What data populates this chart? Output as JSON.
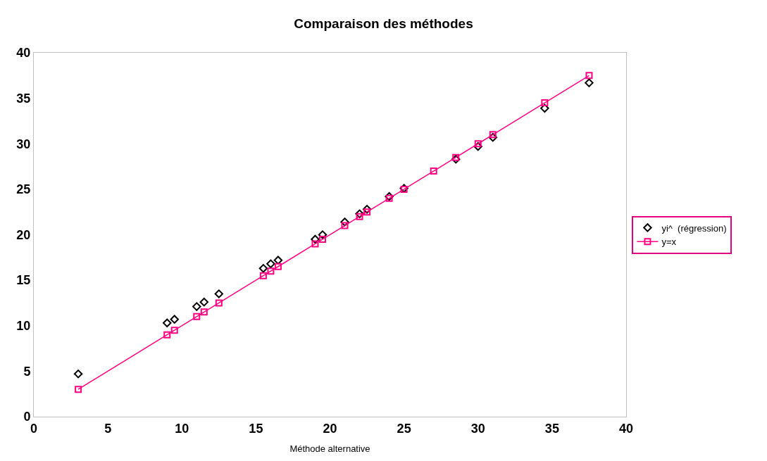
{
  "chart_data": {
    "type": "scatter",
    "title": "Comparaison des méthodes",
    "xlabel": "Méthode alternative",
    "x": [
      3,
      9,
      9.5,
      11,
      11.5,
      12.5,
      15.5,
      16,
      16.5,
      19,
      19.5,
      21,
      22,
      22.5,
      24,
      25,
      27,
      28.5,
      30,
      31,
      34.5,
      37.5
    ],
    "series": [
      {
        "name": "yi^  (régression)",
        "marker": "diamond",
        "color": "#000000",
        "values": [
          4.7,
          10.3,
          10.7,
          12.1,
          12.6,
          13.5,
          16.3,
          16.8,
          17.2,
          19.5,
          20.0,
          21.4,
          22.3,
          22.8,
          24.2,
          25.1,
          null,
          28.3,
          29.7,
          30.7,
          33.9,
          36.7
        ]
      },
      {
        "name": "y=x",
        "type": "line",
        "marker": "square",
        "color": "#ff0080",
        "values": [
          3,
          9,
          9.5,
          11,
          11.5,
          12.5,
          15.5,
          16,
          16.5,
          19,
          19.5,
          21,
          22,
          22.5,
          24,
          25,
          27,
          28.5,
          30,
          31,
          34.5,
          37.5
        ]
      }
    ],
    "xlim": [
      0,
      40
    ],
    "ylim": [
      0,
      40
    ],
    "xticks": [
      0,
      5,
      10,
      15,
      20,
      25,
      30,
      35,
      40
    ],
    "yticks": [
      0,
      5,
      10,
      15,
      20,
      25,
      30,
      35,
      40
    ],
    "legend": "right"
  }
}
